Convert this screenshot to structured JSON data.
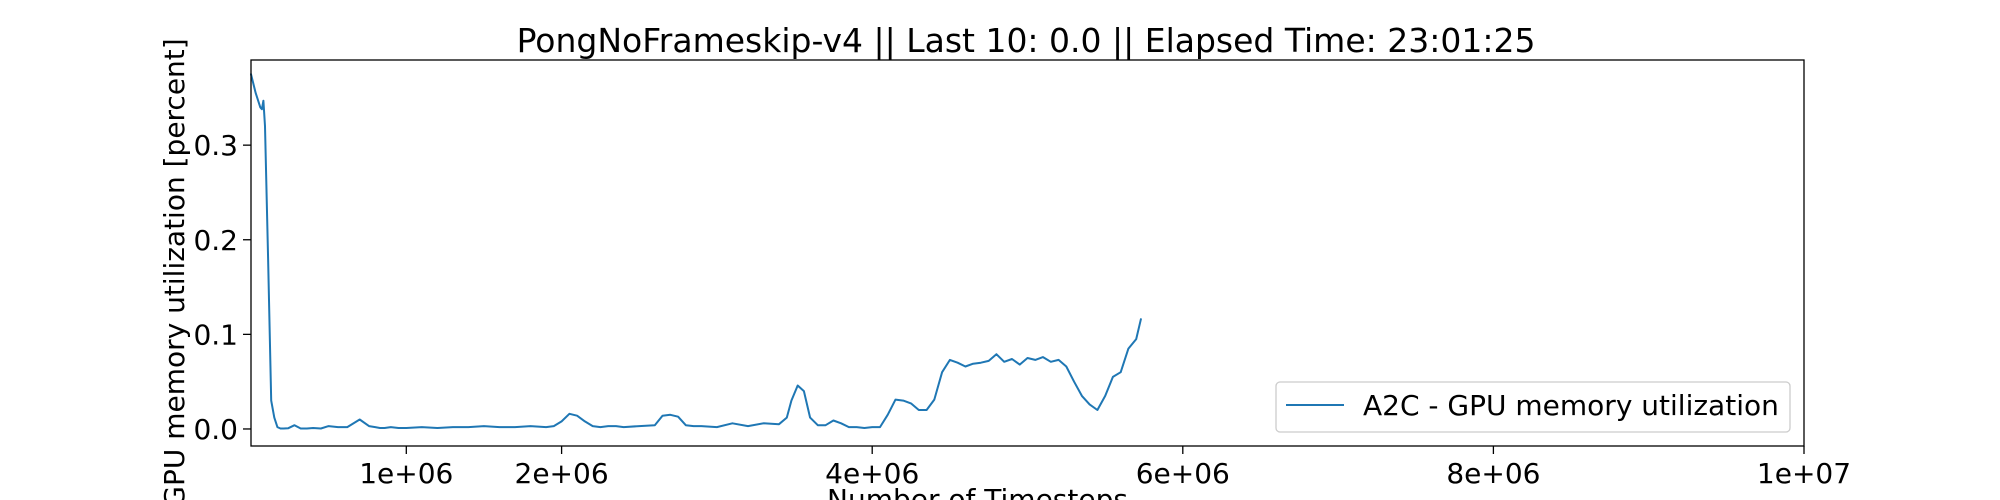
{
  "chart_data": {
    "type": "line",
    "title": "PongNoFrameskip-v4 || Last 10: 0.0 || Elapsed Time: 23:01:25",
    "xlabel": "Number of Timesteps",
    "ylabel": "GPU memory utilization [percent]",
    "xlim": [
      0,
      10000000
    ],
    "ylim": [
      -0.018,
      0.39
    ],
    "xticks": [
      1000000,
      2000000,
      4000000,
      6000000,
      8000000,
      10000000
    ],
    "xtick_labels": [
      "1e+06",
      "2e+06",
      "4e+06",
      "6e+06",
      "8e+06",
      "1e+07"
    ],
    "yticks": [
      0.0,
      0.1,
      0.2,
      0.3
    ],
    "ytick_labels": [
      "0.0",
      "0.1",
      "0.2",
      "0.3"
    ],
    "grid": false,
    "legend_position": "lower-right",
    "series": [
      {
        "name": "A2C - GPU memory utilization",
        "color": "#1f77b4",
        "x": [
          0,
          30000,
          60000,
          70000,
          80000,
          90000,
          110000,
          130000,
          150000,
          170000,
          190000,
          210000,
          240000,
          280000,
          320000,
          360000,
          400000,
          450000,
          500000,
          560000,
          620000,
          700000,
          760000,
          800000,
          830000,
          860000,
          900000,
          950000,
          1000000,
          1100000,
          1200000,
          1300000,
          1400000,
          1500000,
          1600000,
          1700000,
          1800000,
          1900000,
          1950000,
          2000000,
          2050000,
          2100000,
          2150000,
          2200000,
          2250000,
          2300000,
          2350000,
          2400000,
          2500000,
          2600000,
          2650000,
          2700000,
          2750000,
          2800000,
          2850000,
          2900000,
          3000000,
          3100000,
          3200000,
          3300000,
          3400000,
          3450000,
          3480000,
          3520000,
          3560000,
          3600000,
          3650000,
          3700000,
          3750000,
          3800000,
          3850000,
          3900000,
          3950000,
          4000000,
          4050000,
          4100000,
          4150000,
          4200000,
          4250000,
          4300000,
          4350000,
          4400000,
          4450000,
          4500000,
          4550000,
          4600000,
          4650000,
          4700000,
          4750000,
          4800000,
          4850000,
          4900000,
          4950000,
          5000000,
          5050000,
          5100000,
          5150000,
          5200000,
          5250000,
          5300000,
          5350000,
          5400000,
          5450000,
          5500000,
          5550000,
          5600000,
          5650000,
          5700000,
          5730000
        ],
        "y": [
          0.375,
          0.355,
          0.34,
          0.338,
          0.347,
          0.32,
          0.18,
          0.03,
          0.012,
          0.002,
          0.0005,
          0.0005,
          0.0008,
          0.004,
          0.0005,
          0.0005,
          0.001,
          0.0005,
          0.003,
          0.002,
          0.002,
          0.01,
          0.003,
          0.002,
          0.001,
          0.001,
          0.002,
          0.001,
          0.001,
          0.002,
          0.001,
          0.002,
          0.002,
          0.003,
          0.002,
          0.002,
          0.003,
          0.002,
          0.003,
          0.008,
          0.016,
          0.014,
          0.008,
          0.003,
          0.002,
          0.003,
          0.003,
          0.002,
          0.003,
          0.004,
          0.014,
          0.015,
          0.013,
          0.004,
          0.003,
          0.003,
          0.002,
          0.006,
          0.003,
          0.006,
          0.005,
          0.012,
          0.03,
          0.046,
          0.04,
          0.012,
          0.004,
          0.004,
          0.009,
          0.006,
          0.002,
          0.002,
          0.001,
          0.002,
          0.002,
          0.015,
          0.031,
          0.03,
          0.027,
          0.02,
          0.02,
          0.031,
          0.06,
          0.073,
          0.07,
          0.066,
          0.069,
          0.07,
          0.072,
          0.079,
          0.071,
          0.074,
          0.068,
          0.075,
          0.073,
          0.076,
          0.071,
          0.073,
          0.066,
          0.05,
          0.035,
          0.026,
          0.02,
          0.035,
          0.055,
          0.06,
          0.085,
          0.095,
          0.116
        ]
      }
    ]
  }
}
